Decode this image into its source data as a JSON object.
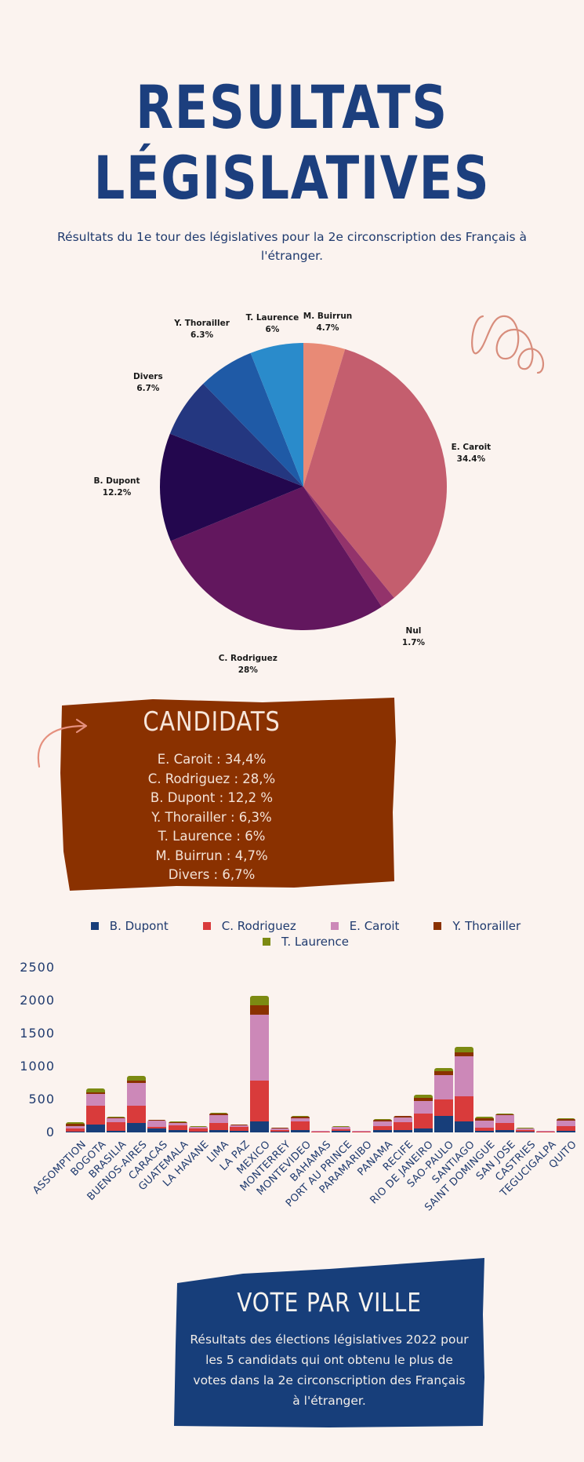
{
  "header": {
    "title_line1": "RESULTATS",
    "title_line2": "LÉGISLATIVES",
    "subtitle": "Résultats du 1e tour des législatives pour la 2e circonscription des Français à l'étranger."
  },
  "candidates_box": {
    "title": "CANDIDATS",
    "items": [
      "E. Caroit : 34,4%",
      "C. Rodriguez : 28,%",
      "B. Dupont : 12,2 %",
      "Y. Thorailler : 6,3%",
      "T. Laurence : 6%",
      "M. Buirrun : 4,7%",
      "Divers : 6,7%"
    ],
    "color": "#8a3100"
  },
  "vote_box": {
    "title": "VOTE PAR VILLE",
    "text": "Résultats des élections législatives 2022 pour les 5 candidats qui ont obtenu le plus de votes dans la 2e circonscription des Français à l'étranger.",
    "color": "#173e7a"
  },
  "chart_data": [
    {
      "type": "pie",
      "title": "",
      "slices": [
        {
          "label": "M. Buirrun",
          "value": 4.7,
          "display": "4.7%",
          "color": "#e88a76"
        },
        {
          "label": "E. Caroit",
          "value": 34.4,
          "display": "34.4%",
          "color": "#c45e6e"
        },
        {
          "label": "Nul",
          "value": 1.7,
          "display": "1.7%",
          "color": "#93336b"
        },
        {
          "label": "C. Rodriguez",
          "value": 28,
          "display": "28%",
          "color": "#62175e"
        },
        {
          "label": "B. Dupont",
          "value": 12.2,
          "display": "12.2%",
          "color": "#23074e"
        },
        {
          "label": "Divers",
          "value": 6.7,
          "display": "6.7%",
          "color": "#243780"
        },
        {
          "label": "Y. Thorailler",
          "value": 6.3,
          "display": "6.3%",
          "color": "#1f5aa6"
        },
        {
          "label": "T. Laurence",
          "value": 6,
          "display": "6%",
          "color": "#2a8bcb"
        }
      ],
      "start_angle": "12 o'clock, clockwise"
    },
    {
      "type": "bar",
      "stacked": true,
      "title": "",
      "xlabel": "",
      "ylabel": "",
      "ylim": [
        0,
        2500
      ],
      "yticks": [
        "0",
        "500",
        "1000",
        "1500",
        "2000",
        "2500"
      ],
      "grid": false,
      "legend_position": "top",
      "categories": [
        "ASSOMPTION",
        "BOGOTA",
        "BRASILIA",
        "BUENOS-AIRES",
        "CARACAS",
        "GUATEMALA",
        "LA HAVANE",
        "LIMA",
        "LA PAZ",
        "MEXICO",
        "MONTERREY",
        "MONTEVIDEO",
        "BAHAMAS",
        "PORT AU PRINCE",
        "PARAMARIBO",
        "PANAMA",
        "RECIFE",
        "RIO DE JANEIRO",
        "SAO-PAULO",
        "SANTIAGO",
        "SAINT DOMINGUE",
        "SAN JOSE",
        "CASTRIES",
        "TEGUCIGALPA",
        "QUITO"
      ],
      "series": [
        {
          "name": "B. Dupont",
          "color": "#173e7a",
          "values": [
            10,
            120,
            20,
            140,
            60,
            40,
            10,
            40,
            20,
            170,
            15,
            30,
            5,
            20,
            5,
            30,
            40,
            60,
            250,
            170,
            20,
            30,
            10,
            5,
            20
          ]
        },
        {
          "name": "C. Rodriguez",
          "color": "#d93b3b",
          "values": [
            50,
            280,
            130,
            270,
            20,
            70,
            50,
            100,
            60,
            610,
            20,
            140,
            5,
            30,
            10,
            70,
            110,
            220,
            250,
            380,
            50,
            110,
            20,
            5,
            80
          ]
        },
        {
          "name": "E. Caroit",
          "color": "#cc88b8",
          "values": [
            40,
            180,
            60,
            340,
            100,
            30,
            20,
            120,
            30,
            1000,
            30,
            50,
            10,
            30,
            15,
            70,
            80,
            200,
            370,
            610,
            110,
            120,
            30,
            10,
            80
          ]
        },
        {
          "name": "Y. Thorailler",
          "color": "#8a3100",
          "values": [
            30,
            30,
            20,
            40,
            10,
            20,
            5,
            20,
            10,
            150,
            5,
            15,
            0,
            5,
            0,
            20,
            15,
            40,
            60,
            50,
            40,
            15,
            5,
            0,
            20
          ]
        },
        {
          "name": "T. Laurence",
          "color": "#7c8a12",
          "values": [
            20,
            60,
            10,
            70,
            5,
            10,
            5,
            20,
            5,
            140,
            5,
            10,
            0,
            5,
            0,
            10,
            10,
            50,
            50,
            90,
            20,
            10,
            5,
            0,
            10
          ]
        }
      ]
    }
  ]
}
